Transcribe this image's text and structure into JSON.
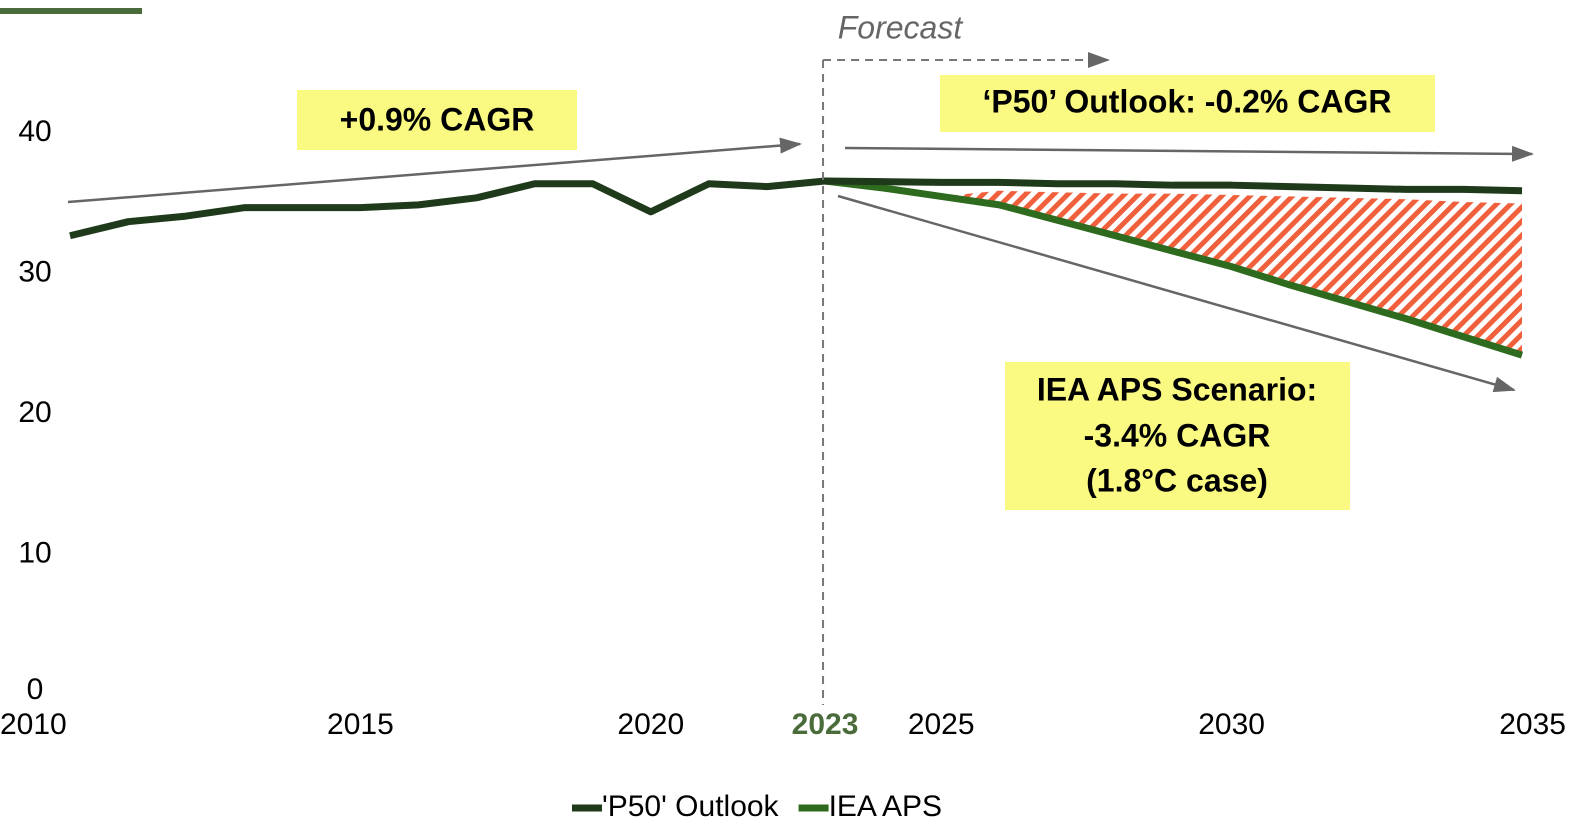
{
  "chart_data": {
    "type": "line",
    "xlim": [
      2010,
      2035
    ],
    "ylim": [
      0,
      45
    ],
    "xticks": [
      2010,
      2015,
      2020,
      2023,
      2025,
      2030,
      2035
    ],
    "yticks": [
      0,
      10,
      20,
      30,
      40
    ],
    "highlight_xtick": 2023,
    "highlight_color": "#4a6b3a",
    "forecast_start": 2023,
    "forecast_label": "Forecast",
    "annotations": [
      "+0.9% CAGR",
      "‘P50’ Outlook: -0.2% CAGR",
      "IEA APS Scenario:",
      "-3.4% CAGR",
      "(1.8°C case)"
    ],
    "series": [
      {
        "name": "'P50' Outlook",
        "color": "#1f3a1a",
        "x": [
          2010,
          2011,
          2012,
          2013,
          2014,
          2015,
          2016,
          2017,
          2018,
          2019,
          2020,
          2021,
          2022,
          2023,
          2024,
          2025,
          2026,
          2027,
          2028,
          2029,
          2030,
          2031,
          2032,
          2033,
          2034,
          2035
        ],
        "values": [
          32.7,
          33.7,
          34.1,
          34.7,
          34.7,
          34.7,
          34.9,
          35.4,
          36.4,
          36.4,
          34.4,
          36.4,
          36.2,
          36.6,
          36.55,
          36.5,
          36.5,
          36.4,
          36.4,
          36.3,
          36.3,
          36.2,
          36.1,
          36.0,
          36.0,
          35.9
        ]
      },
      {
        "name": "IEA APS",
        "color": "#2e6b1f",
        "x": [
          2023,
          2024,
          2025,
          2026,
          2027,
          2028,
          2029,
          2030,
          2031,
          2032,
          2033,
          2034,
          2035
        ],
        "values": [
          36.6,
          36.1,
          35.5,
          34.9,
          33.8,
          32.7,
          31.6,
          30.5,
          29.2,
          28.0,
          26.8,
          25.5,
          24.2
        ],
        "hatch_upper": [
          null,
          null,
          35.5,
          35.9,
          35.8,
          35.7,
          35.7,
          35.6,
          35.5,
          35.4,
          35.3,
          35.1,
          35.0
        ],
        "hatch_color": "#f0603c"
      }
    ]
  }
}
